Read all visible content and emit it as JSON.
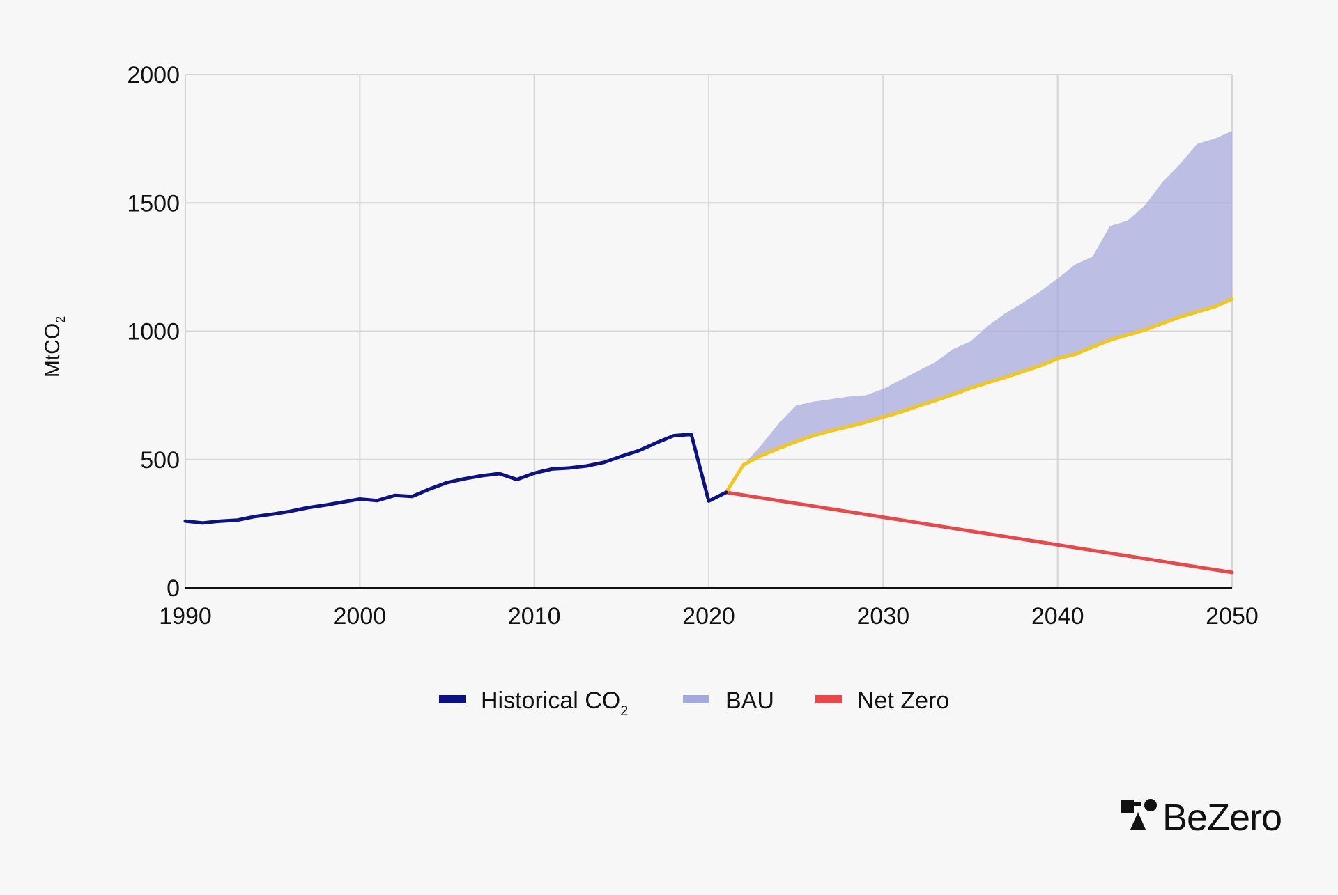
{
  "chart_data": {
    "type": "line",
    "xlabel": "",
    "ylabel": "MtCO",
    "ylabel_sub": "2",
    "xlim": [
      1990,
      2050
    ],
    "ylim": [
      0,
      2000
    ],
    "xticks": [
      1990,
      2000,
      2010,
      2020,
      2030,
      2040,
      2050
    ],
    "yticks": [
      0,
      500,
      1000,
      1500,
      2000
    ],
    "grid": true,
    "legend_position": "bottom",
    "series": [
      {
        "name": "Historical CO",
        "name_sub": "2",
        "kind": "line",
        "color": "#0d1282",
        "x": [
          1990,
          1991,
          1992,
          1993,
          1994,
          1995,
          1996,
          1997,
          1998,
          1999,
          2000,
          2001,
          2002,
          2003,
          2004,
          2005,
          2006,
          2007,
          2008,
          2009,
          2010,
          2011,
          2012,
          2013,
          2014,
          2015,
          2016,
          2017,
          2018,
          2019,
          2020,
          2021
        ],
        "y": [
          260,
          253,
          260,
          264,
          278,
          287,
          298,
          312,
          322,
          334,
          346,
          340,
          360,
          356,
          385,
          410,
          425,
          437,
          445,
          422,
          447,
          463,
          467,
          475,
          489,
          513,
          535,
          565,
          593,
          598,
          338,
          372
        ]
      },
      {
        "name": "BAU",
        "kind": "band",
        "color": "#a5a8dc",
        "x": [
          2021,
          2022,
          2023,
          2024,
          2025,
          2026,
          2027,
          2028,
          2029,
          2030,
          2031,
          2032,
          2033,
          2034,
          2035,
          2036,
          2037,
          2038,
          2039,
          2040,
          2041,
          2042,
          2043,
          2044,
          2045,
          2046,
          2047,
          2048,
          2049,
          2050
        ],
        "upper": [
          372,
          480,
          555,
          640,
          710,
          725,
          735,
          745,
          750,
          775,
          810,
          845,
          880,
          930,
          960,
          1020,
          1070,
          1110,
          1155,
          1205,
          1260,
          1290,
          1410,
          1430,
          1490,
          1580,
          1650,
          1730,
          1750,
          1780
        ],
        "lower": [
          372,
          480,
          515,
          543,
          570,
          593,
          612,
          628,
          645,
          665,
          685,
          708,
          730,
          753,
          778,
          800,
          820,
          843,
          865,
          893,
          910,
          938,
          965,
          985,
          1005,
          1030,
          1055,
          1075,
          1095,
          1125
        ]
      },
      {
        "name": "BAU central",
        "kind": "line",
        "legend": false,
        "color": "#f2c71d",
        "x": [
          2021,
          2022,
          2023,
          2024,
          2025,
          2026,
          2027,
          2028,
          2029,
          2030,
          2031,
          2032,
          2033,
          2034,
          2035,
          2036,
          2037,
          2038,
          2039,
          2040,
          2041,
          2042,
          2043,
          2044,
          2045,
          2046,
          2047,
          2048,
          2049,
          2050
        ],
        "y": [
          372,
          480,
          515,
          543,
          570,
          593,
          612,
          628,
          645,
          665,
          685,
          708,
          730,
          753,
          778,
          800,
          820,
          843,
          865,
          893,
          910,
          938,
          965,
          985,
          1005,
          1030,
          1055,
          1075,
          1095,
          1125
        ]
      },
      {
        "name": "Net Zero",
        "kind": "line",
        "color": "#e8484a",
        "x": [
          2021,
          2050
        ],
        "y": [
          372,
          60
        ]
      }
    ]
  },
  "brand": {
    "name": "BeZero"
  }
}
